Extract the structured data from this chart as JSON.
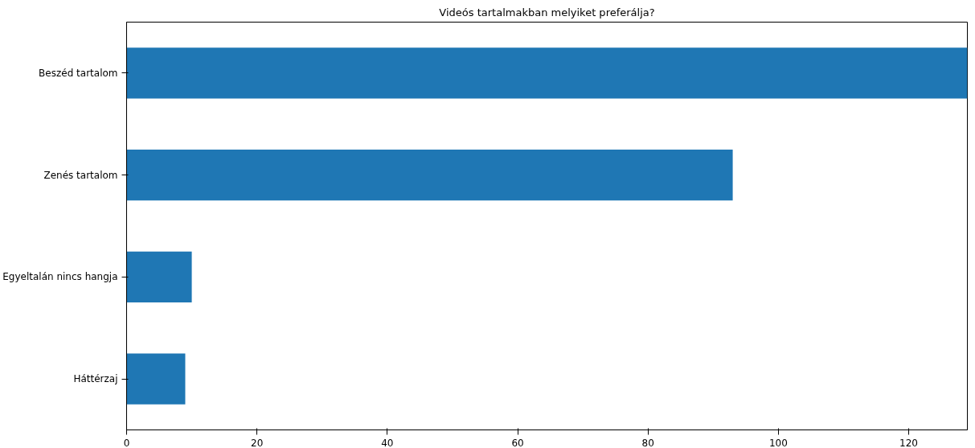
{
  "chart_data": {
    "type": "bar",
    "orientation": "horizontal",
    "title": "Videós tartalmakban melyiket preferálja?",
    "categories": [
      "Beszéd tartalom",
      "Zenés tartalom",
      "Egyeltalán nincs hangja",
      "Háttérzaj"
    ],
    "values": [
      129,
      93,
      10,
      9
    ],
    "color": "#1f77b4",
    "xlim": [
      0,
      129
    ],
    "xticks": [
      0,
      20,
      40,
      60,
      80,
      100,
      120
    ],
    "grid": false
  }
}
